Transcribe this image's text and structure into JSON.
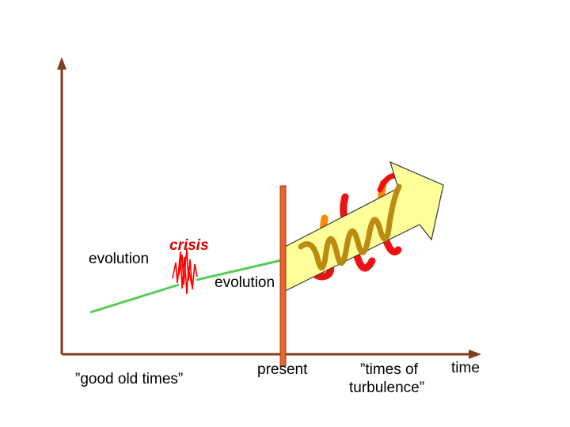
{
  "labels": {
    "evolution_left": "evolution",
    "crisis": "crisis",
    "evolution_mid": "evolution",
    "good_old_times": "”good old times”",
    "present": "present",
    "times_of_turbulence_line1": "”times of",
    "times_of_turbulence_line2": "turbulence”",
    "time_axis": "time"
  },
  "colors": {
    "axis": "#7f3f1f",
    "trend_line": "#55cc55",
    "crisis": "#ff0000",
    "present_bar": "#e8642e",
    "present_bar_stroke": "#a03a10",
    "arrow_fill": "#ffff99",
    "arrow_stroke": "#333333",
    "spiral_front": "#cc8800",
    "spiral_back_orange": "#ff8800",
    "spiral_back_red": "#ee1111",
    "crisis_label": "#dd0000"
  }
}
